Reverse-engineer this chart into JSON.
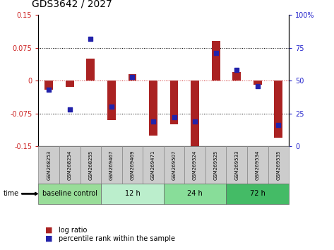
{
  "title": "GDS3642 / 2027",
  "samples": [
    "GSM268253",
    "GSM268254",
    "GSM268255",
    "GSM269467",
    "GSM269469",
    "GSM269471",
    "GSM269507",
    "GSM269524",
    "GSM269525",
    "GSM269533",
    "GSM269534",
    "GSM269535"
  ],
  "log_ratio": [
    -0.02,
    -0.015,
    0.05,
    -0.09,
    0.015,
    -0.125,
    -0.1,
    -0.155,
    0.09,
    0.02,
    -0.01,
    -0.13
  ],
  "percentile_rank": [
    43,
    28,
    82,
    30,
    53,
    19,
    22,
    19,
    71,
    58,
    46,
    16
  ],
  "ylim_left": [
    -0.15,
    0.15
  ],
  "ylim_right": [
    0,
    100
  ],
  "yticks_left": [
    -0.15,
    -0.075,
    0,
    0.075,
    0.15
  ],
  "yticks_right": [
    0,
    25,
    50,
    75,
    100
  ],
  "bar_color": "#AA2222",
  "dot_color": "#2222AA",
  "groups": [
    {
      "label": "baseline control",
      "start": 0,
      "end": 3,
      "color": "#99DD99"
    },
    {
      "label": "12 h",
      "start": 3,
      "end": 6,
      "color": "#BBEECC"
    },
    {
      "label": "24 h",
      "start": 6,
      "end": 9,
      "color": "#88DD99"
    },
    {
      "label": "72 h",
      "start": 9,
      "end": 12,
      "color": "#44BB66"
    }
  ],
  "sample_box_color": "#CCCCCC",
  "tick_label_fontsize": 7,
  "title_fontsize": 10
}
